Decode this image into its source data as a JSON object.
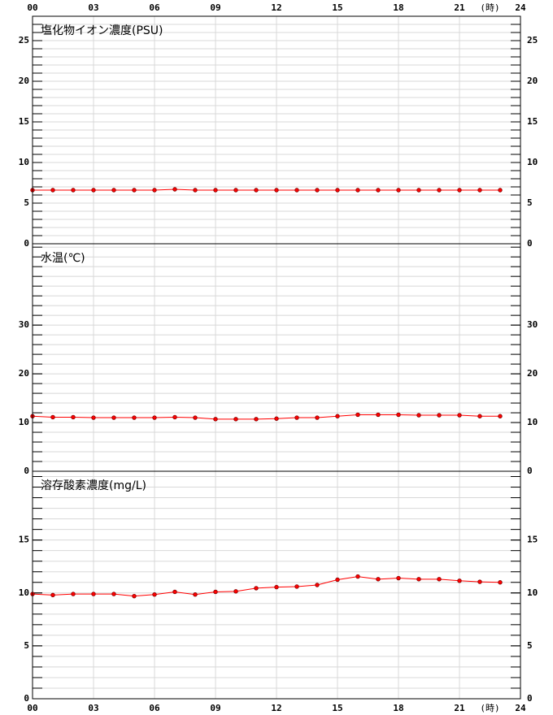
{
  "x_axis": {
    "xlim": [
      0,
      24
    ],
    "xticks": [
      {
        "value": 0,
        "label": "00"
      },
      {
        "value": 3,
        "label": "03"
      },
      {
        "value": 6,
        "label": "06"
      },
      {
        "value": 9,
        "label": "09"
      },
      12,
      15,
      18,
      21,
      24
    ],
    "unit_label": "(時)"
  },
  "chart_data": [
    {
      "type": "line",
      "title": "塩化物イオン濃度(PSU)",
      "x": [
        0,
        1,
        2,
        3,
        4,
        5,
        6,
        7,
        8,
        9,
        10,
        11,
        12,
        13,
        14,
        15,
        16,
        17,
        18,
        19,
        20,
        21,
        22,
        23
      ],
      "series": [
        {
          "color": "#ff0000",
          "values": [
            6.6,
            6.6,
            6.6,
            6.6,
            6.6,
            6.6,
            6.6,
            6.7,
            6.6,
            6.6,
            6.6,
            6.6,
            6.6,
            6.6,
            6.6,
            6.6,
            6.6,
            6.6,
            6.6,
            6.6,
            6.6,
            6.6,
            6.6,
            6.6
          ]
        }
      ],
      "ylim": [
        0,
        28
      ],
      "yticks": [
        0,
        5,
        10,
        15,
        20,
        25
      ],
      "minor_step": 1,
      "grid": true
    },
    {
      "type": "line",
      "title": "水温(℃)",
      "x": [
        0,
        1,
        2,
        3,
        4,
        5,
        6,
        7,
        8,
        9,
        10,
        11,
        12,
        13,
        14,
        15,
        16,
        17,
        18,
        19,
        20,
        21,
        22,
        23
      ],
      "series": [
        {
          "color": "#ff0000",
          "values": [
            11.3,
            11.1,
            11.1,
            11.0,
            11.0,
            11.0,
            11.0,
            11.1,
            11.0,
            10.7,
            10.7,
            10.7,
            10.8,
            11.0,
            11.0,
            11.3,
            11.6,
            11.6,
            11.6,
            11.5,
            11.5,
            11.5,
            11.3,
            11.3
          ]
        }
      ],
      "ylim": [
        0,
        46.7
      ],
      "yticks": [
        0,
        10,
        20,
        30
      ],
      "minor_step": 2,
      "grid": true
    },
    {
      "type": "line",
      "title": "溶存酸素濃度(mg/L)",
      "x": [
        0,
        1,
        2,
        3,
        4,
        5,
        6,
        7,
        8,
        9,
        10,
        11,
        12,
        13,
        14,
        15,
        16,
        17,
        18,
        19,
        20,
        21,
        22,
        23
      ],
      "series": [
        {
          "color": "#ff0000",
          "values": [
            9.9,
            9.8,
            9.9,
            9.9,
            9.9,
            9.7,
            9.85,
            10.1,
            9.85,
            10.1,
            10.15,
            10.45,
            10.55,
            10.6,
            10.75,
            11.25,
            11.55,
            11.3,
            11.4,
            11.3,
            11.3,
            11.15,
            11.05,
            11.0
          ]
        }
      ],
      "ylim": [
        0,
        21.5
      ],
      "yticks": [
        0,
        5,
        10,
        15
      ],
      "minor_step": 1,
      "grid": true
    }
  ]
}
